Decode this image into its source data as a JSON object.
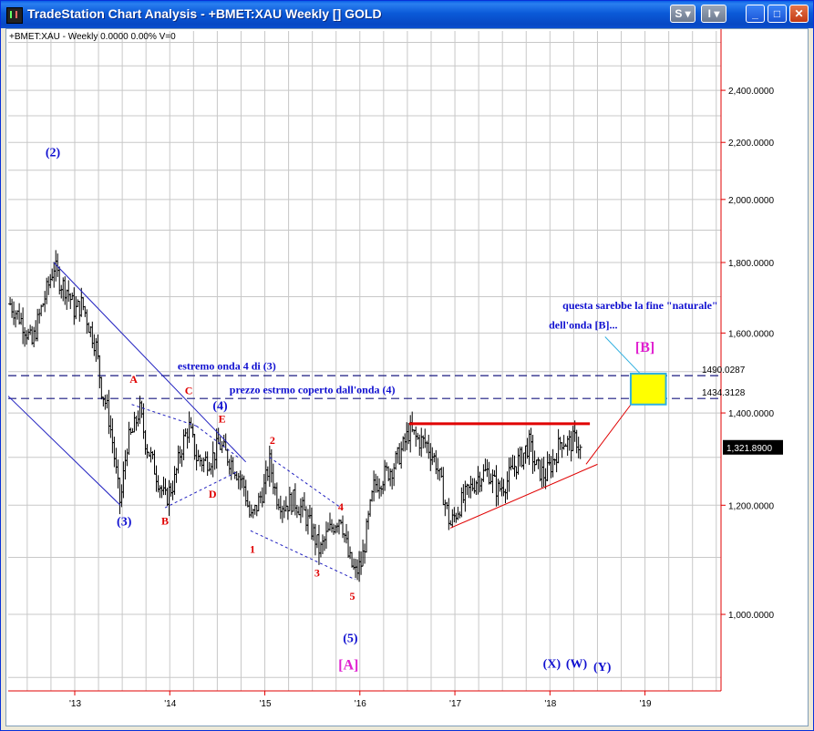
{
  "window": {
    "title": "TradeStation Chart Analysis - +BMET:XAU Weekly [] GOLD",
    "btn_s": "S",
    "btn_i": "I",
    "btn_min": "_",
    "btn_max": "□",
    "btn_close": "✕"
  },
  "chart_data": {
    "type": "bar",
    "status_line": "+BMET:XAU - Weekly  0.0000  0.00%  V=0",
    "y_scale": "log",
    "ylim": [
      880,
      2650
    ],
    "xlim": [
      2012.3,
      2019.8
    ],
    "y_ticks": [
      "2,400.0000",
      "2,200.0000",
      "2,000.0000",
      "1,800.0000",
      "1,600.0000",
      "1,400.0000",
      "1,200.0000",
      "1,000.0000"
    ],
    "y_tick_values": [
      2400,
      2200,
      2000,
      1800,
      1600,
      1400,
      1200,
      1000
    ],
    "x_ticks": [
      "'13",
      "'14",
      "'15",
      "'16",
      "'17",
      "'18",
      "'19"
    ],
    "x_tick_values": [
      2013,
      2014,
      2015,
      2016,
      2017,
      2018,
      2019
    ],
    "grid": true,
    "last_price": "1,321.8900",
    "last_price_value": 1321.89,
    "price_path": [
      [
        2012.32,
        1680
      ],
      [
        2012.45,
        1630
      ],
      [
        2012.55,
        1570
      ],
      [
        2012.62,
        1640
      ],
      [
        2012.72,
        1730
      ],
      [
        2012.78,
        1790
      ],
      [
        2012.85,
        1740
      ],
      [
        2012.92,
        1720
      ],
      [
        2013.0,
        1660
      ],
      [
        2013.08,
        1680
      ],
      [
        2013.15,
        1620
      ],
      [
        2013.22,
        1570
      ],
      [
        2013.28,
        1460
      ],
      [
        2013.35,
        1400
      ],
      [
        2013.4,
        1330
      ],
      [
        2013.45,
        1240
      ],
      [
        2013.48,
        1200
      ],
      [
        2013.55,
        1330
      ],
      [
        2013.62,
        1360
      ],
      [
        2013.68,
        1410
      ],
      [
        2013.75,
        1330
      ],
      [
        2013.85,
        1270
      ],
      [
        2013.95,
        1210
      ],
      [
        2014.05,
        1250
      ],
      [
        2014.12,
        1320
      ],
      [
        2014.2,
        1370
      ],
      [
        2014.28,
        1300
      ],
      [
        2014.35,
        1290
      ],
      [
        2014.45,
        1300
      ],
      [
        2014.52,
        1330
      ],
      [
        2014.58,
        1310
      ],
      [
        2014.68,
        1280
      ],
      [
        2014.78,
        1240
      ],
      [
        2014.85,
        1170
      ],
      [
        2014.9,
        1190
      ],
      [
        2015.0,
        1240
      ],
      [
        2015.05,
        1290
      ],
      [
        2015.12,
        1220
      ],
      [
        2015.2,
        1200
      ],
      [
        2015.3,
        1210
      ],
      [
        2015.4,
        1190
      ],
      [
        2015.5,
        1150
      ],
      [
        2015.58,
        1110
      ],
      [
        2015.65,
        1140
      ],
      [
        2015.75,
        1170
      ],
      [
        2015.8,
        1180
      ],
      [
        2015.88,
        1100
      ],
      [
        2015.95,
        1070
      ],
      [
        2016.02,
        1090
      ],
      [
        2016.08,
        1160
      ],
      [
        2016.15,
        1240
      ],
      [
        2016.25,
        1260
      ],
      [
        2016.35,
        1280
      ],
      [
        2016.45,
        1320
      ],
      [
        2016.52,
        1360
      ],
      [
        2016.6,
        1340
      ],
      [
        2016.7,
        1330
      ],
      [
        2016.8,
        1290
      ],
      [
        2016.88,
        1220
      ],
      [
        2016.95,
        1160
      ],
      [
        2017.05,
        1200
      ],
      [
        2017.15,
        1230
      ],
      [
        2017.25,
        1260
      ],
      [
        2017.35,
        1270
      ],
      [
        2017.45,
        1230
      ],
      [
        2017.55,
        1250
      ],
      [
        2017.62,
        1280
      ],
      [
        2017.7,
        1300
      ],
      [
        2017.78,
        1330
      ],
      [
        2017.85,
        1280
      ],
      [
        2017.95,
        1260
      ],
      [
        2018.05,
        1300
      ],
      [
        2018.12,
        1340
      ],
      [
        2018.2,
        1330
      ],
      [
        2018.28,
        1340
      ],
      [
        2018.33,
        1310
      ]
    ],
    "lines": [
      {
        "name": "downtrend-upper-line",
        "color": "#2020c0",
        "from": [
          2012.78,
          1800
        ],
        "to": [
          2014.8,
          1290
        ]
      },
      {
        "name": "downtrend-lower-line",
        "color": "#2020c0",
        "from": [
          2012.3,
          1440
        ],
        "to": [
          2013.48,
          1200
        ]
      },
      {
        "name": "triangle-upper-dashed",
        "color": "#2020c0",
        "dash": true,
        "from": [
          2013.6,
          1420
        ],
        "to": [
          2014.28,
          1370
        ]
      },
      {
        "name": "triangle-lower-dashed",
        "color": "#2020c0",
        "dash": true,
        "from": [
          2013.95,
          1195
        ],
        "to": [
          2014.72,
          1270
        ]
      },
      {
        "name": "triangle-upper-dashed-2",
        "color": "#2020c0",
        "dash": true,
        "from": [
          2014.28,
          1370
        ],
        "to": [
          2014.72,
          1300
        ]
      },
      {
        "name": "wave-upper-dashed",
        "color": "#2020c0",
        "dash": true,
        "from": [
          2015.05,
          1300
        ],
        "to": [
          2015.8,
          1195
        ]
      },
      {
        "name": "wave-lower-dashed",
        "color": "#2020c0",
        "dash": true,
        "from": [
          2014.85,
          1150
        ],
        "to": [
          2015.95,
          1060
        ]
      },
      {
        "name": "resistance-line",
        "color": "#e00000",
        "width": 3,
        "from": [
          2016.52,
          1375
        ],
        "to": [
          2018.42,
          1375
        ]
      },
      {
        "name": "support-line",
        "color": "#e00000",
        "from": [
          2016.95,
          1155
        ],
        "to": [
          2018.5,
          1285
        ]
      },
      {
        "name": "projection-line",
        "color": "#e00000",
        "from": [
          2018.38,
          1285
        ],
        "to": [
          2019.0,
          1465
        ]
      }
    ],
    "hlines": [
      {
        "name": "level-1490",
        "value": 1490.0287,
        "label": "1490.0287"
      },
      {
        "name": "level-1434",
        "value": 1434.3128,
        "label": "1434.3128"
      }
    ],
    "target_box": {
      "x": [
        2018.85,
        2019.22
      ],
      "y": [
        1420,
        1495
      ],
      "color": "#ffff00",
      "border": "#30b0e0"
    },
    "annotations": [
      {
        "text": "(2)",
        "x": 2012.77,
        "y": 2150,
        "color": "#1010d0",
        "size": 14
      },
      {
        "text": "(3)",
        "x": 2013.52,
        "y": 1160,
        "color": "#1010d0",
        "size": 14
      },
      {
        "text": "(4)",
        "x": 2014.53,
        "y": 1408,
        "color": "#1010d0",
        "size": 14
      },
      {
        "text": "(5)",
        "x": 2015.9,
        "y": 955,
        "color": "#1010d0",
        "size": 14
      },
      {
        "text": "[A]",
        "x": 2015.88,
        "y": 912,
        "color": "#e020d0",
        "size": 16
      },
      {
        "text": "[B]",
        "x": 2019.0,
        "y": 1550,
        "color": "#e020d0",
        "size": 16
      },
      {
        "text": "A",
        "x": 2013.62,
        "y": 1472,
        "color": "#e00000",
        "size": 12
      },
      {
        "text": "B",
        "x": 2013.95,
        "y": 1162,
        "color": "#e00000",
        "size": 12
      },
      {
        "text": "C",
        "x": 2014.2,
        "y": 1445,
        "color": "#e00000",
        "size": 12
      },
      {
        "text": "D",
        "x": 2014.45,
        "y": 1215,
        "color": "#e00000",
        "size": 12
      },
      {
        "text": "E",
        "x": 2014.55,
        "y": 1378,
        "color": "#e00000",
        "size": 12
      },
      {
        "text": "1",
        "x": 2014.87,
        "y": 1108,
        "color": "#e00000",
        "size": 12
      },
      {
        "text": "2",
        "x": 2015.08,
        "y": 1330,
        "color": "#e00000",
        "size": 12
      },
      {
        "text": "3",
        "x": 2015.55,
        "y": 1065,
        "color": "#e00000",
        "size": 12
      },
      {
        "text": "4",
        "x": 2015.8,
        "y": 1190,
        "color": "#e00000",
        "size": 12
      },
      {
        "text": "5",
        "x": 2015.92,
        "y": 1025,
        "color": "#e00000",
        "size": 12
      },
      {
        "text": "(X)",
        "x": 2018.02,
        "y": 915,
        "color": "#1010d0",
        "size": 14
      },
      {
        "text": "(W)",
        "x": 2018.28,
        "y": 915,
        "color": "#1010d0",
        "size": 14
      },
      {
        "text": "(Y)",
        "x": 2018.55,
        "y": 910,
        "color": "#1010d0",
        "size": 14
      },
      {
        "text": "estremo onda 4 di (3)",
        "x": 2014.6,
        "y": 1505,
        "color": "#1010d0",
        "size": 12
      },
      {
        "text": "prezzo estrmo coperto dall'onda (4)",
        "x": 2015.5,
        "y": 1447,
        "color": "#1010d0",
        "size": 12
      },
      {
        "text": "questa sarebbe la fine \"naturale\"",
        "x": 2018.95,
        "y": 1665,
        "color": "#1010d0",
        "size": 12
      },
      {
        "text": "dell'onda [B]...",
        "x": 2018.35,
        "y": 1612,
        "color": "#1010d0",
        "size": 12
      }
    ]
  }
}
